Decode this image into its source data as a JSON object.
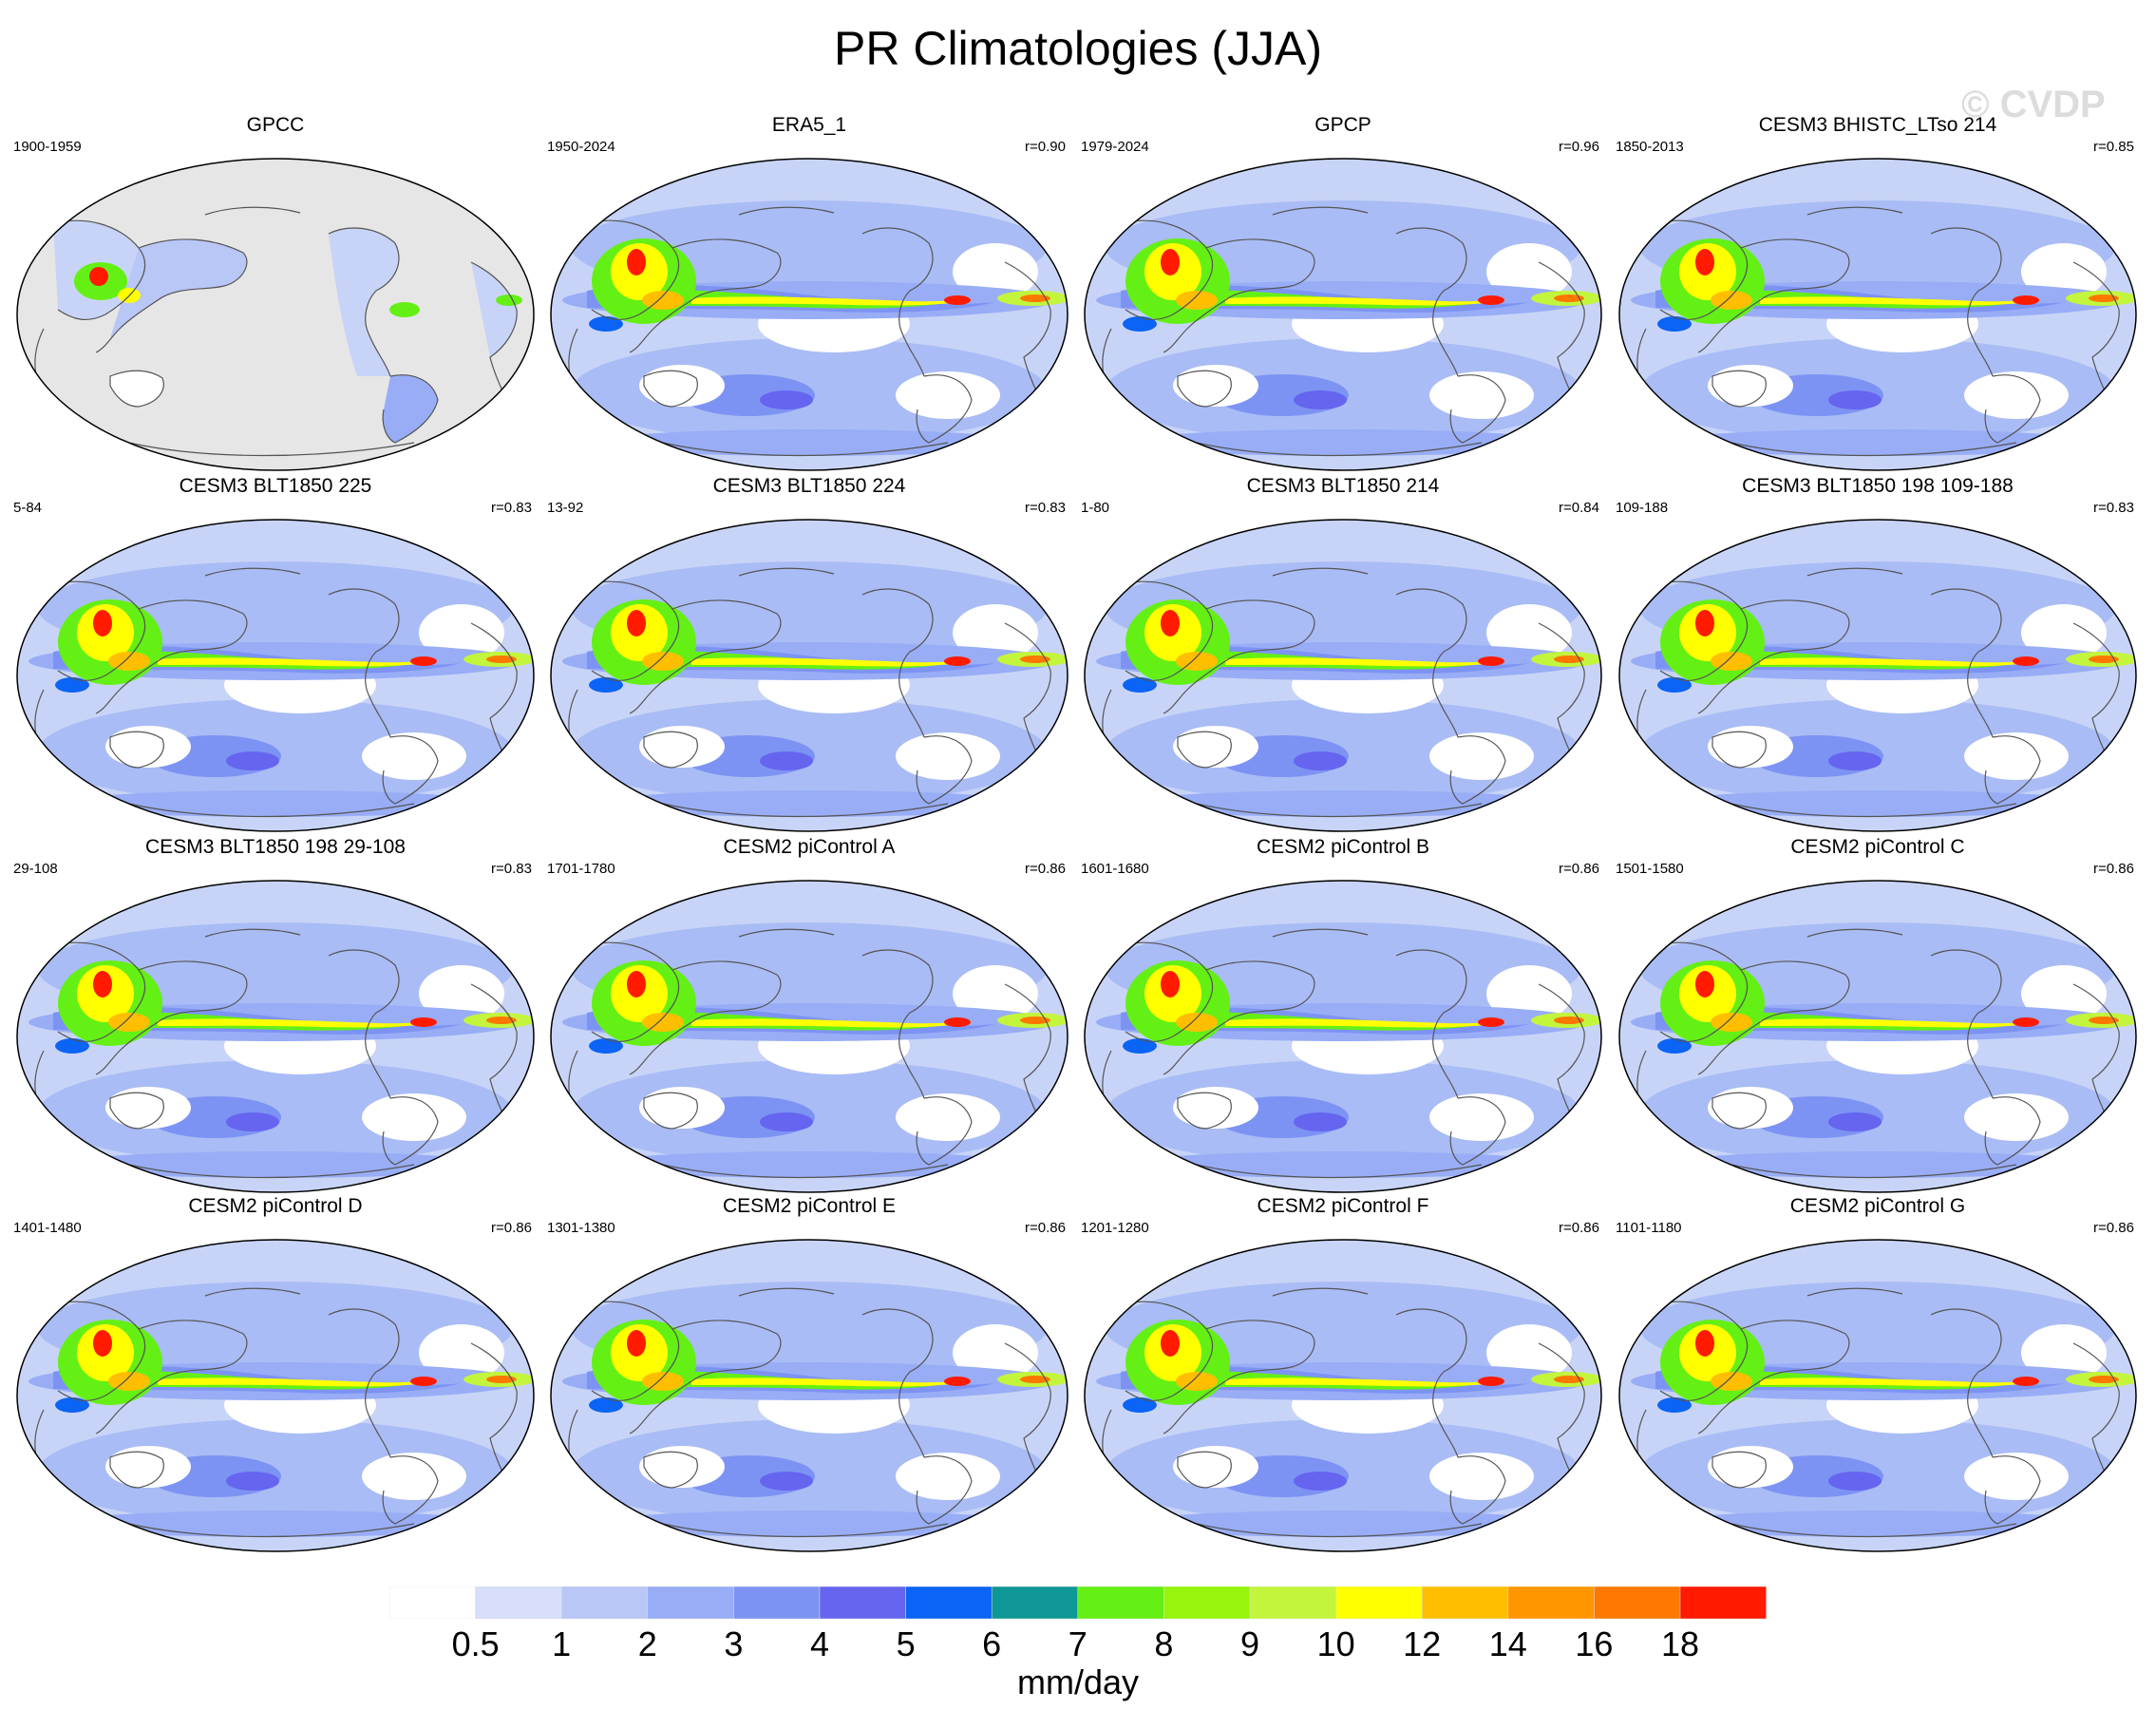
{
  "title": "PR Climatologies (JJA)",
  "watermark": "© CVDP",
  "panels": [
    {
      "name": "GPCC",
      "period": "1900-1959",
      "r": "",
      "land_only": true
    },
    {
      "name": "ERA5_1",
      "period": "1950-2024",
      "r": "r=0.90"
    },
    {
      "name": "GPCP",
      "period": "1979-2024",
      "r": "r=0.96"
    },
    {
      "name": "CESM3 BHISTC_LTso 214",
      "period": "1850-2013",
      "r": "r=0.85"
    },
    {
      "name": "CESM3 BLT1850 225",
      "period": "5-84",
      "r": "r=0.83"
    },
    {
      "name": "CESM3 BLT1850 224",
      "period": "13-92",
      "r": "r=0.83"
    },
    {
      "name": "CESM3 BLT1850 214",
      "period": "1-80",
      "r": "r=0.84"
    },
    {
      "name": "CESM3 BLT1850 198 109-188",
      "period": "109-188",
      "r": "r=0.83"
    },
    {
      "name": "CESM3 BLT1850 198 29-108",
      "period": "29-108",
      "r": "r=0.83"
    },
    {
      "name": "CESM2 piControl A",
      "period": "1701-1780",
      "r": "r=0.86"
    },
    {
      "name": "CESM2 piControl B",
      "period": "1601-1680",
      "r": "r=0.86"
    },
    {
      "name": "CESM2 piControl C",
      "period": "1501-1580",
      "r": "r=0.86"
    },
    {
      "name": "CESM2 piControl D",
      "period": "1401-1480",
      "r": "r=0.86"
    },
    {
      "name": "CESM2 piControl E",
      "period": "1301-1380",
      "r": "r=0.86"
    },
    {
      "name": "CESM2 piControl F",
      "period": "1201-1280",
      "r": "r=0.86"
    },
    {
      "name": "CESM2 piControl G",
      "period": "1101-1180",
      "r": "r=0.86"
    }
  ],
  "colorbar": {
    "labels": [
      "0.5",
      "1",
      "2",
      "3",
      "4",
      "5",
      "6",
      "7",
      "8",
      "9",
      "10",
      "12",
      "14",
      "16",
      "18"
    ],
    "colors": [
      "#ffffff",
      "#d7dffb",
      "#b9c7f7",
      "#98adf6",
      "#7d93f3",
      "#6565ef",
      "#0a64f5",
      "#0f9696",
      "#64f014",
      "#96f50a",
      "#c3f53c",
      "#ffff00",
      "#ffbe00",
      "#ff9600",
      "#ff7800",
      "#ff1a00"
    ],
    "units": "mm/day"
  }
}
